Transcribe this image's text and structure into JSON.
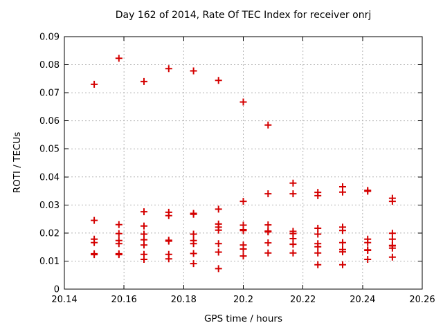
{
  "chart_data": {
    "type": "scatter",
    "title": "Day 162 of 2014, Rate Of TEC Index for receiver onrj",
    "xlabel": "GPS time / hours",
    "ylabel": "ROTI / TECUs",
    "xlim": [
      20.14,
      20.26
    ],
    "ylim": [
      0,
      0.09
    ],
    "x_tick_values": [
      20.14,
      20.16,
      20.18,
      20.2,
      20.22,
      20.24,
      20.26
    ],
    "x_tick_labels": [
      "20.14",
      "20.16",
      "20.18",
      "20.2",
      "20.22",
      "20.24",
      "20.26"
    ],
    "y_tick_values": [
      0,
      0.01,
      0.02,
      0.03,
      0.04,
      0.05,
      0.06,
      0.07,
      0.08,
      0.09
    ],
    "y_tick_labels": [
      "0",
      "0.01",
      "0.02",
      "0.03",
      "0.04",
      "0.05",
      "0.06",
      "0.07",
      "0.08",
      "0.09"
    ],
    "grid": true,
    "legend_position": "none",
    "marker": "plus",
    "colors": {
      "marker": "#d40000",
      "grid": "#b3b3b3",
      "axis": "#000000",
      "background": "#ffffff",
      "text": "#000000"
    },
    "series": [
      {
        "name": "ROTI",
        "points": [
          [
            20.15,
            0.073
          ],
          [
            20.15,
            0.0245
          ],
          [
            20.15,
            0.0178
          ],
          [
            20.15,
            0.0166
          ],
          [
            20.15,
            0.0126
          ],
          [
            20.15,
            0.0123
          ],
          [
            20.1583,
            0.0823
          ],
          [
            20.1583,
            0.023
          ],
          [
            20.1583,
            0.0198
          ],
          [
            20.1583,
            0.0173
          ],
          [
            20.1583,
            0.0162
          ],
          [
            20.1583,
            0.0126
          ],
          [
            20.1583,
            0.0123
          ],
          [
            20.1667,
            0.074
          ],
          [
            20.1667,
            0.0276
          ],
          [
            20.1667,
            0.0225
          ],
          [
            20.1667,
            0.0196
          ],
          [
            20.1667,
            0.0176
          ],
          [
            20.1667,
            0.0157
          ],
          [
            20.1667,
            0.0124
          ],
          [
            20.1667,
            0.0106
          ],
          [
            20.175,
            0.0786
          ],
          [
            20.175,
            0.0274
          ],
          [
            20.175,
            0.0262
          ],
          [
            20.175,
            0.0174
          ],
          [
            20.175,
            0.0171
          ],
          [
            20.175,
            0.0124
          ],
          [
            20.175,
            0.0108
          ],
          [
            20.1833,
            0.0778
          ],
          [
            20.1833,
            0.027
          ],
          [
            20.1833,
            0.0267
          ],
          [
            20.1833,
            0.0196
          ],
          [
            20.1833,
            0.0173
          ],
          [
            20.1833,
            0.0162
          ],
          [
            20.1833,
            0.0127
          ],
          [
            20.1833,
            0.0091
          ],
          [
            20.1917,
            0.0744
          ],
          [
            20.1917,
            0.0285
          ],
          [
            20.1917,
            0.0232
          ],
          [
            20.1917,
            0.0221
          ],
          [
            20.1917,
            0.021
          ],
          [
            20.1917,
            0.0162
          ],
          [
            20.1917,
            0.0132
          ],
          [
            20.1917,
            0.0073
          ],
          [
            20.2,
            0.0667
          ],
          [
            20.2,
            0.0313
          ],
          [
            20.2,
            0.0228
          ],
          [
            20.2,
            0.0212
          ],
          [
            20.2,
            0.0209
          ],
          [
            20.2,
            0.0157
          ],
          [
            20.2,
            0.0143
          ],
          [
            20.2,
            0.0118
          ],
          [
            20.2083,
            0.0585
          ],
          [
            20.2083,
            0.034
          ],
          [
            20.2083,
            0.0229
          ],
          [
            20.2083,
            0.0207
          ],
          [
            20.2083,
            0.0204
          ],
          [
            20.2083,
            0.0165
          ],
          [
            20.2083,
            0.0129
          ],
          [
            20.2167,
            0.0378
          ],
          [
            20.2167,
            0.034
          ],
          [
            20.2167,
            0.0206
          ],
          [
            20.2167,
            0.0198
          ],
          [
            20.2167,
            0.018
          ],
          [
            20.2167,
            0.016
          ],
          [
            20.2167,
            0.0129
          ],
          [
            20.225,
            0.0345
          ],
          [
            20.225,
            0.0333
          ],
          [
            20.225,
            0.0217
          ],
          [
            20.225,
            0.0196
          ],
          [
            20.225,
            0.0162
          ],
          [
            20.225,
            0.0151
          ],
          [
            20.225,
            0.0129
          ],
          [
            20.225,
            0.0087
          ],
          [
            20.2333,
            0.0365
          ],
          [
            20.2333,
            0.0346
          ],
          [
            20.2333,
            0.0221
          ],
          [
            20.2333,
            0.0209
          ],
          [
            20.2333,
            0.0166
          ],
          [
            20.2333,
            0.0141
          ],
          [
            20.2333,
            0.0133
          ],
          [
            20.2333,
            0.0087
          ],
          [
            20.2417,
            0.0352
          ],
          [
            20.2417,
            0.0349
          ],
          [
            20.2417,
            0.0178
          ],
          [
            20.2417,
            0.0166
          ],
          [
            20.2417,
            0.014
          ],
          [
            20.2417,
            0.0138
          ],
          [
            20.2417,
            0.0106
          ],
          [
            20.25,
            0.0324
          ],
          [
            20.25,
            0.0313
          ],
          [
            20.25,
            0.0199
          ],
          [
            20.25,
            0.0178
          ],
          [
            20.25,
            0.0156
          ],
          [
            20.25,
            0.0154
          ],
          [
            20.25,
            0.0146
          ],
          [
            20.25,
            0.0114
          ]
        ]
      }
    ]
  }
}
